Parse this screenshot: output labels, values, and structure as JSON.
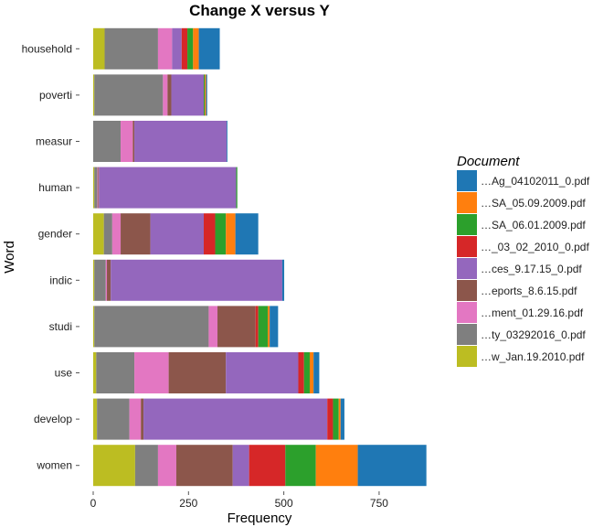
{
  "chart_data": {
    "type": "bar",
    "orientation": "horizontal",
    "stacked": true,
    "title": "Change X versus Y",
    "xlabel": "Frequency",
    "ylabel": "Word",
    "xlim": [
      0,
      870
    ],
    "xticks": [
      0,
      250,
      500,
      750
    ],
    "grid": false,
    "legend": {
      "title": "Document",
      "placement": "right"
    },
    "categories": [
      "household",
      "poverti",
      "measur",
      "human",
      "gender",
      "indic",
      "studi",
      "use",
      "develop",
      "women"
    ],
    "series": [
      {
        "name": "…w_Jan.19.2010.pdf",
        "color": "#bcbd22",
        "values": [
          30,
          3,
          0,
          3,
          28,
          3,
          3,
          8,
          10,
          110
        ]
      },
      {
        "name": "…ty_03292016_0.pdf",
        "color": "#7f7f7f",
        "values": [
          140,
          180,
          72,
          8,
          22,
          30,
          300,
          100,
          85,
          60
        ]
      },
      {
        "name": "…ment_01.29.16.pdf",
        "color": "#e377c2",
        "values": [
          37,
          12,
          32,
          2,
          22,
          3,
          23,
          90,
          30,
          48
        ]
      },
      {
        "name": "…eports_8.6.15.pdf",
        "color": "#8c564b",
        "values": [
          0,
          10,
          4,
          2,
          78,
          10,
          100,
          150,
          7,
          148
        ]
      },
      {
        "name": "…ces_9.17.15_0.pdf",
        "color": "#9467bd",
        "values": [
          25,
          85,
          242,
          360,
          140,
          450,
          0,
          190,
          482,
          43
        ]
      },
      {
        "name": "…_03_02_2010_0.pdf",
        "color": "#d62728",
        "values": [
          15,
          0,
          0,
          0,
          30,
          0,
          7,
          15,
          15,
          95
        ]
      },
      {
        "name": "…SA_06.01.2009.pdf",
        "color": "#2ca02c",
        "values": [
          15,
          3,
          0,
          3,
          28,
          0,
          25,
          15,
          15,
          80
        ]
      },
      {
        "name": "…SA_05.09.2009.pdf",
        "color": "#ff7f0e",
        "values": [
          15,
          3,
          0,
          0,
          25,
          0,
          5,
          10,
          5,
          110
        ]
      },
      {
        "name": "…Ag_04102011_0.pdf",
        "color": "#1f77b4",
        "values": [
          55,
          3,
          2,
          0,
          60,
          5,
          22,
          15,
          10,
          180
        ]
      }
    ]
  }
}
